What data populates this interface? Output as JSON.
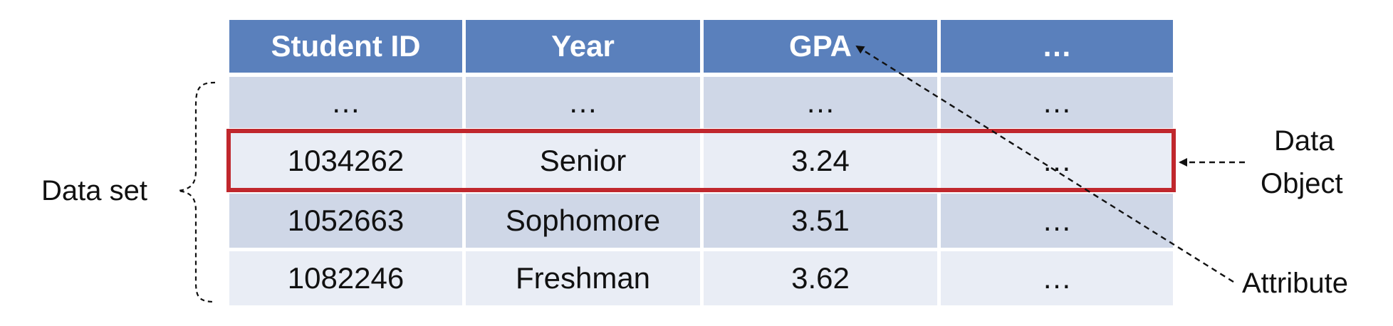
{
  "table": {
    "headers": [
      "Student ID",
      "Year",
      "GPA",
      "…"
    ],
    "rows": [
      [
        "…",
        "…",
        "…",
        "…"
      ],
      [
        "1034262",
        "Senior",
        "3.24",
        "…"
      ],
      [
        "1052663",
        "Sophomore",
        "3.51",
        "…"
      ],
      [
        "1082246",
        "Freshman",
        "3.62",
        "…"
      ]
    ],
    "highlighted_row": 1
  },
  "labels": {
    "data_set": "Data set",
    "data_object_line1": "Data",
    "data_object_line2": "Object",
    "attribute": "Attribute"
  },
  "colors": {
    "header_bg": "#5a80bc",
    "row_dark": "#cfd7e7",
    "row_light": "#e9edf5",
    "highlight_border": "#c0272d"
  }
}
